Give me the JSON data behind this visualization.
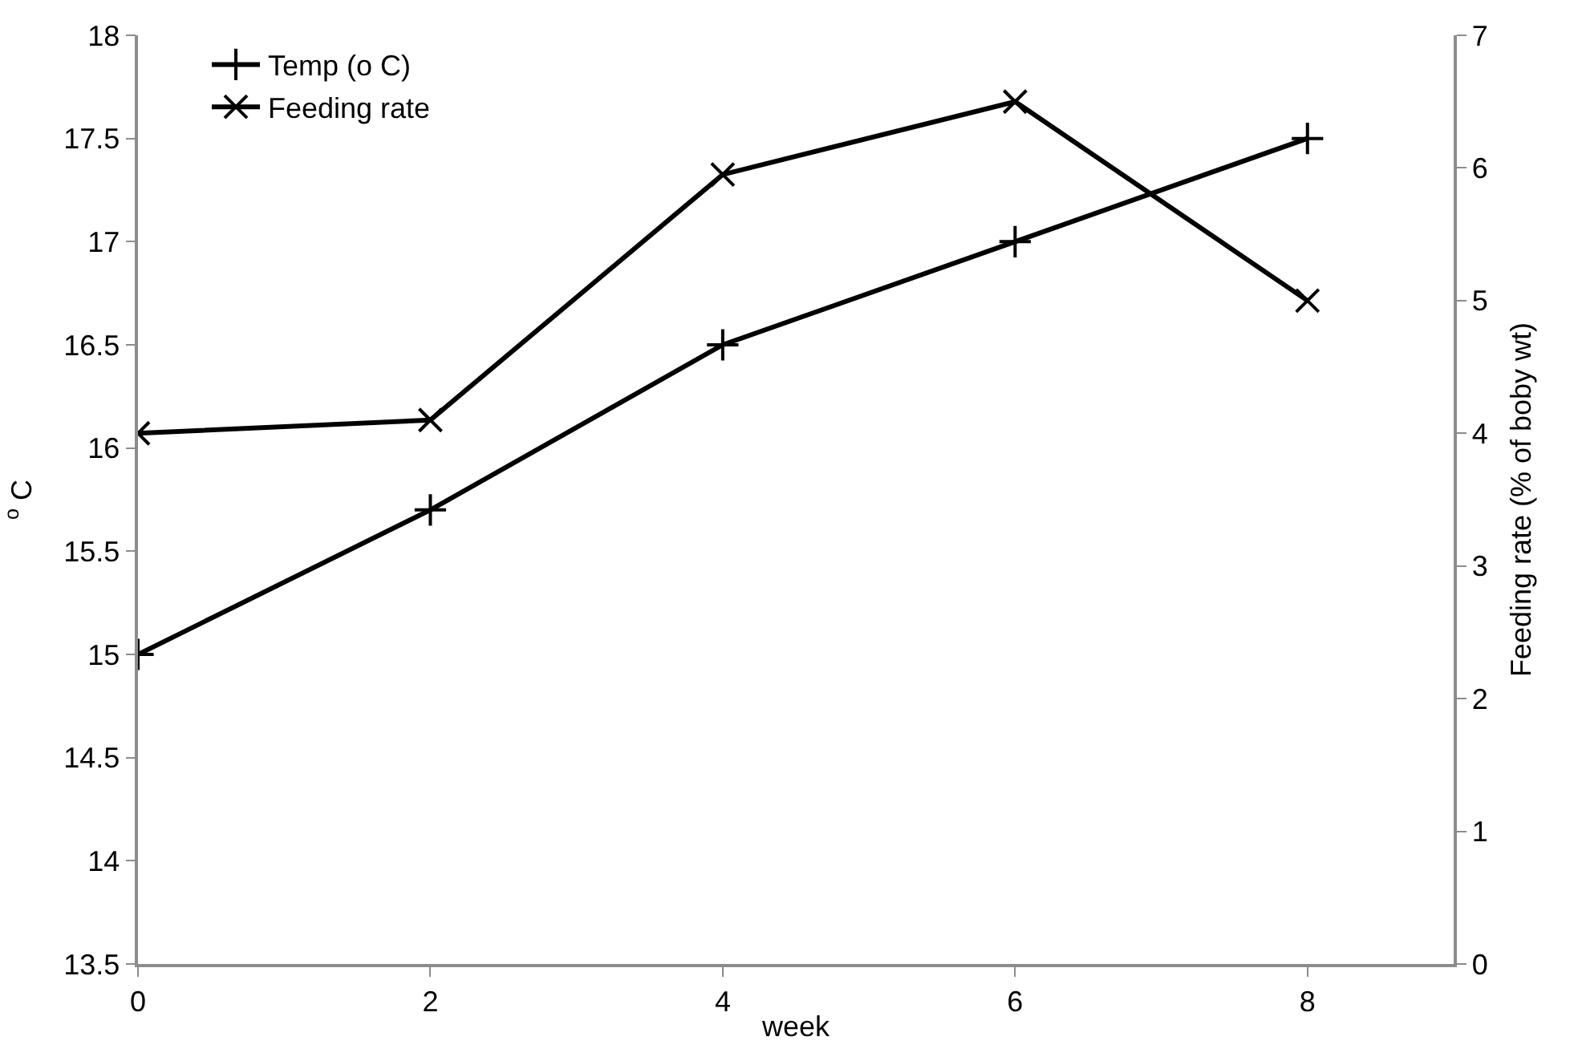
{
  "chart_data": {
    "type": "line",
    "xlabel": "week",
    "ylabel": "$^{o}$ C",
    "y2label": "Feeding rate (% of boby wt)",
    "x": [
      0,
      2,
      4,
      6,
      8
    ],
    "series": [
      {
        "name": "Temp (o C)",
        "color": "#000000",
        "values": [
          15,
          15.7,
          16.5,
          17,
          17.5
        ],
        "marker": "cross"
      },
      {
        "name": "Feeding rate",
        "color": "#000000",
        "values": [
          4.0,
          4.1,
          5.95,
          6.5,
          5.0
        ],
        "marker": "x",
        "axis": "y2"
      }
    ],
    "xlim": [
      0,
      9
    ],
    "xticks": [
      0,
      2,
      4,
      6,
      8
    ],
    "ylim": [
      13.5,
      18
    ],
    "yticks": [
      13.5,
      14,
      14.5,
      15,
      15.5,
      16,
      16.5,
      17,
      17.5,
      18
    ],
    "y2lim": [
      0,
      7
    ],
    "y2ticks": [
      0,
      1,
      2,
      3,
      4,
      5,
      6,
      7
    ],
    "legend": "top left",
    "line_style": "solid"
  }
}
